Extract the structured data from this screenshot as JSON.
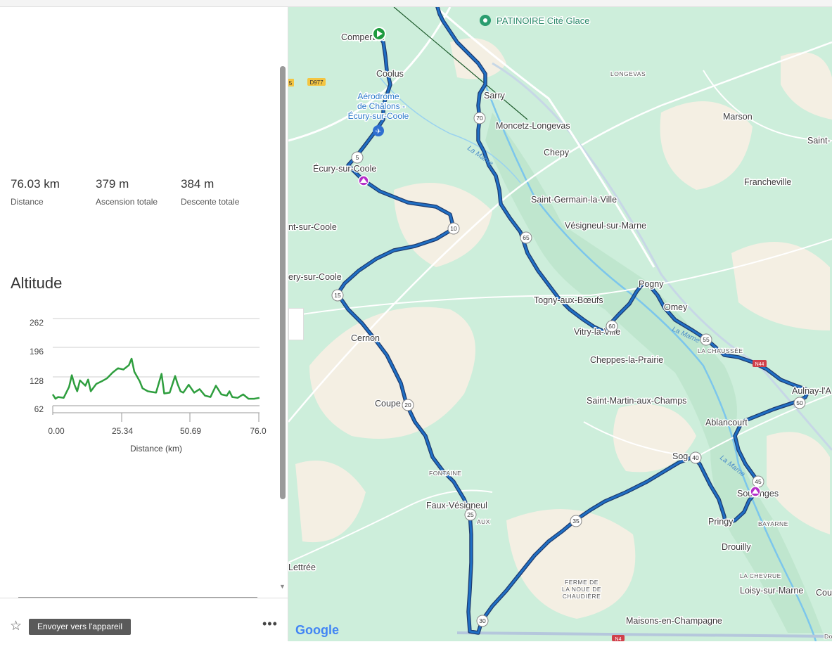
{
  "stats": [
    {
      "value": "76.03 km",
      "label": "Distance"
    },
    {
      "value": "379 m",
      "label": "Ascension totale"
    },
    {
      "value": "384 m",
      "label": "Descente totale"
    }
  ],
  "elevation": {
    "title": "Altitude",
    "y_ticks": [
      "262",
      "196",
      "128",
      "62"
    ],
    "x_ticks": [
      "0.00",
      "25.34",
      "50.69",
      "76.0"
    ],
    "x_label": "Distance (km)",
    "line_color": "#2e9e3e"
  },
  "chart_data": {
    "type": "area",
    "title": "Altitude",
    "xlabel": "Distance (km)",
    "ylabel": "",
    "xlim": [
      0,
      76.03
    ],
    "ylim": [
      62,
      262
    ],
    "x": [
      0,
      1,
      2,
      4,
      6,
      7,
      8,
      9,
      10,
      12,
      13,
      14,
      16,
      18,
      20,
      22,
      24,
      26,
      28,
      29,
      30,
      32,
      33,
      35,
      38,
      40,
      41,
      43,
      45,
      46,
      47,
      48,
      50,
      52,
      54,
      56,
      58,
      60,
      62,
      64,
      65,
      66,
      68,
      70,
      72,
      74,
      76
    ],
    "y": [
      88,
      78,
      82,
      80,
      105,
      132,
      110,
      95,
      120,
      108,
      122,
      95,
      112,
      118,
      125,
      138,
      148,
      145,
      155,
      170,
      140,
      118,
      102,
      95,
      92,
      135,
      90,
      92,
      130,
      110,
      95,
      92,
      110,
      92,
      100,
      85,
      82,
      108,
      88,
      85,
      95,
      82,
      80,
      88,
      78,
      78,
      80
    ]
  },
  "actions": {
    "send_label": "Envoyer vers l'appareil",
    "favorite_icon": "star-icon",
    "more_icon": "more-icon",
    "more_text": "•••"
  },
  "map": {
    "attribution": "Google",
    "route_color": "#1f6fc5",
    "poi": "PATINOIRE Cité Glace",
    "road_badges": [
      "D977",
      "5",
      "N44",
      "N4"
    ],
    "km_markers": [
      "5",
      "10",
      "15",
      "20",
      "25",
      "30",
      "35",
      "40",
      "45",
      "50",
      "55",
      "60",
      "65",
      "70"
    ],
    "places": {
      "compertrix": "Compertrix",
      "coolus": "Coolus",
      "aerodrome": [
        "Aérodrome",
        "de Châlons -",
        "Écury-sur-Coole"
      ],
      "ecury": "Écury-sur-Coole",
      "saint_sur_coole": "nt-sur-Coole",
      "nuisement": "ery-sur-Coole",
      "cernon": "Cernon",
      "coupe": "Coupe",
      "fontaine": "FONTAINE",
      "faux_vesigneul": "Faux-Vésigneul",
      "faux": "AUX",
      "lettree": "Lettrée",
      "sarry": "Sarry",
      "moncetz": "Moncetz-Longevas",
      "longevas": "LONGEVAS",
      "chepy": "Chepy",
      "marson": "Marson",
      "saint": "Saint-",
      "francheville": "Francheville",
      "saint_germain": "Saint-Germain-la-Ville",
      "vesigneul_marne": "Vésigneul-sur-Marne",
      "pogny": "Pogny",
      "omey": "Omey",
      "togny": "Togny-aux-Bœufs",
      "vitry": "Vitry-la-Ville",
      "cheppes": "Cheppes-la-Prairie",
      "la_chaussee": "LA CHAUSSÉE",
      "aulnay": "Aulnay-l'A",
      "saint_martin": "Saint-Martin-aux-Champs",
      "ablancourt": "Ablancourt",
      "sogny": "Sog",
      "songy": "Songy",
      "la_marne_1": "La Marne",
      "la_marne_2": "La Marne",
      "la_marne_3": "La Marne",
      "soulanges": "Soulanges",
      "bayarne": "BAYARNE",
      "pringy": "Pringy",
      "drouilly": "Drouilly",
      "la_chevrue": "LA CHEVRUE",
      "loisy": "Loisy-sur-Marne",
      "cou": "Cou",
      "ferme": [
        "FERME DE",
        "LA NOUE DE",
        "CHAUDIÈRE"
      ],
      "maisons": "Maisons-en-Champagne",
      "do": "Do"
    }
  }
}
